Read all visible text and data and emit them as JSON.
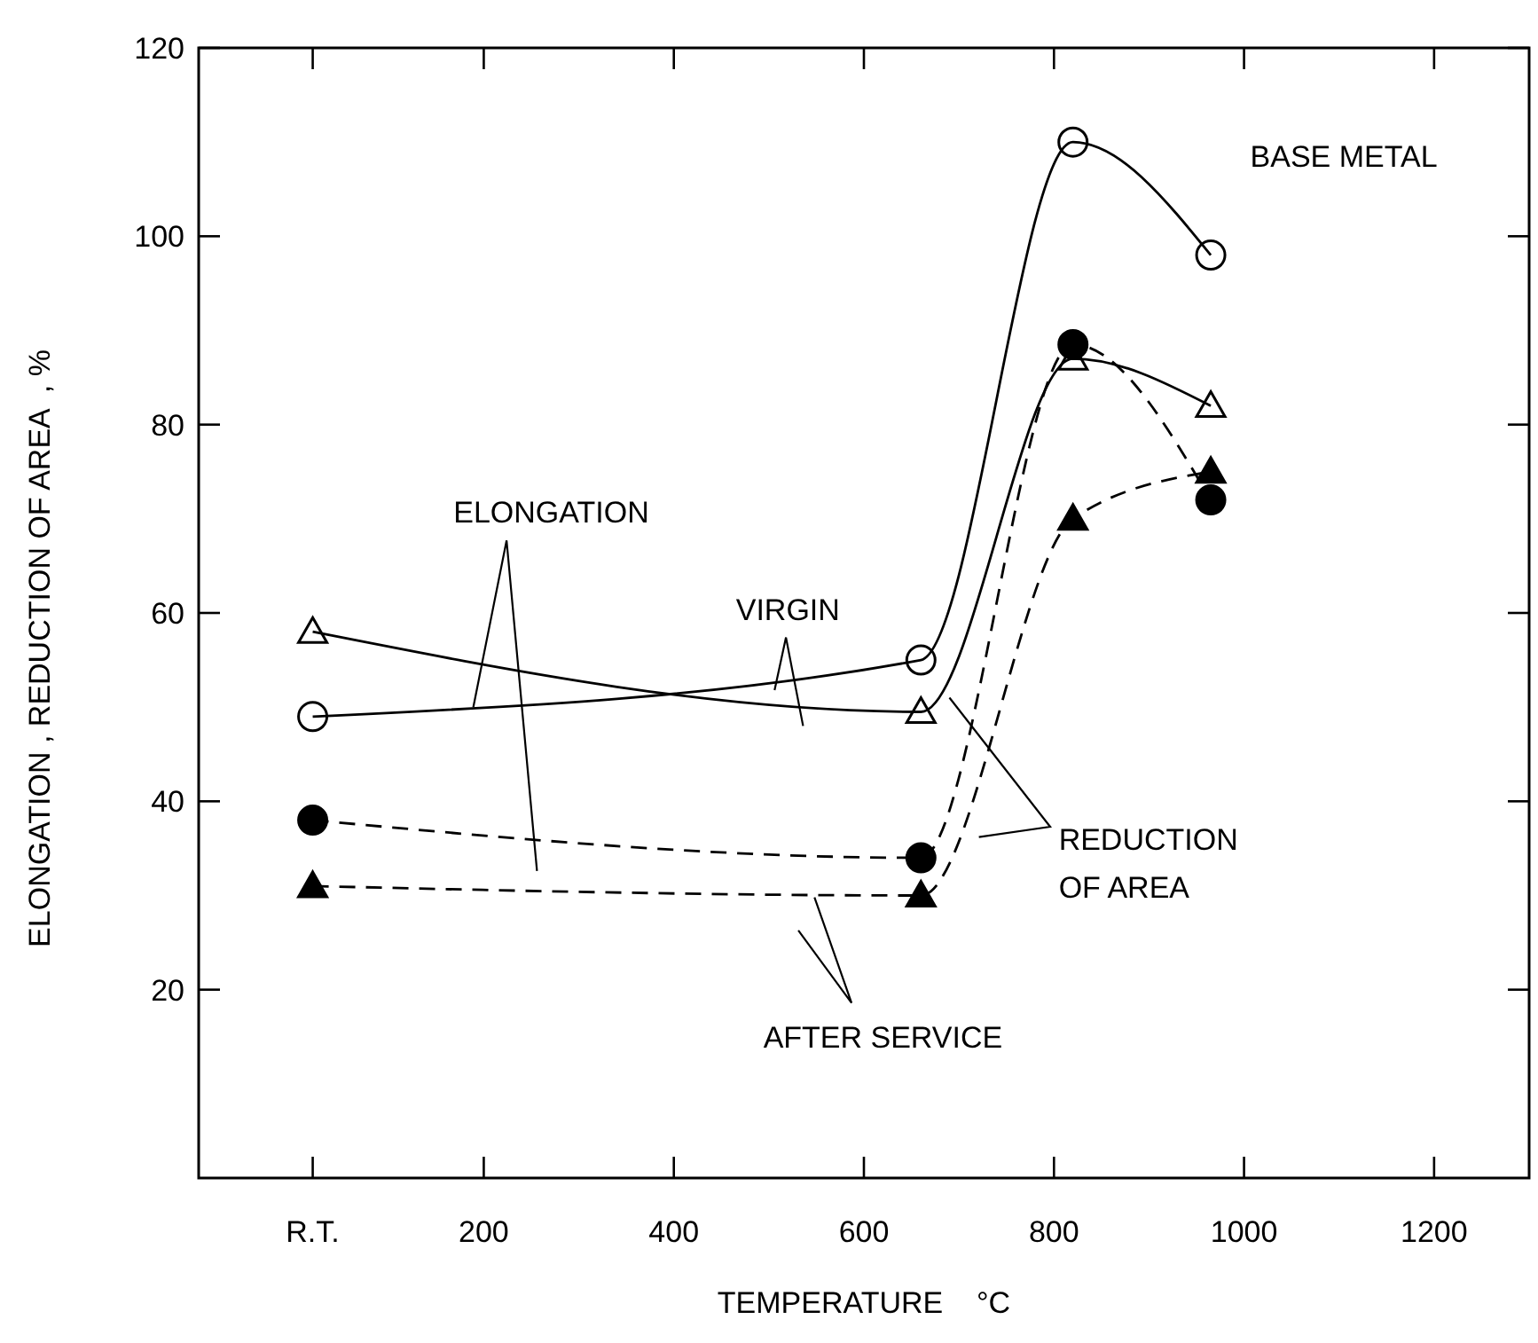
{
  "chart_data": {
    "type": "line",
    "xlabel": "TEMPERATURE    °C",
    "ylabel": "ELONGATION , REDUCTION OF AREA  , %",
    "x": [
      20,
      660,
      820,
      965
    ],
    "xlim": [
      -100,
      1300
    ],
    "xticks": [
      {
        "value": 20,
        "label": "R.T."
      },
      200,
      400,
      600,
      800,
      1000,
      1200
    ],
    "ylim": [
      0,
      120
    ],
    "yticks": [
      20,
      40,
      60,
      80,
      100,
      120
    ],
    "grid": false,
    "series": [
      {
        "color": "#000000",
        "marker": "circle",
        "line_style": "solid",
        "values": [
          49,
          55,
          110,
          98
        ]
      },
      {
        "color": "#000000",
        "marker": "triangle",
        "line_style": "solid",
        "values": [
          58,
          49.5,
          87,
          82
        ]
      },
      {
        "color": "#000000",
        "marker": "circle",
        "line_style": "dashed",
        "values": [
          38,
          34,
          88.5,
          72
        ]
      },
      {
        "color": "#000000",
        "marker": "triangle",
        "line_style": "dashed",
        "values": [
          31,
          30,
          70,
          75
        ]
      }
    ],
    "annotations": [
      "BASE METAL",
      "ELONGATION",
      "VIRGIN",
      "REDUCTION OF AREA",
      "AFTER SERVICE"
    ]
  }
}
